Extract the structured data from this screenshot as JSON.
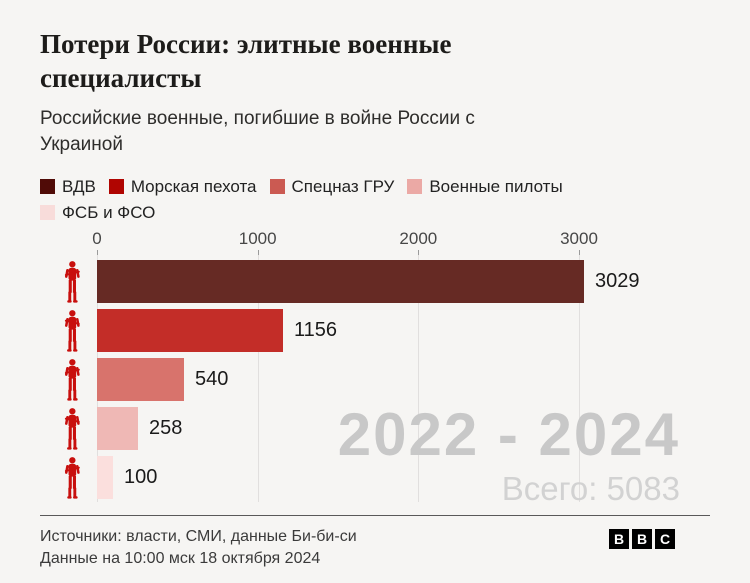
{
  "header": {
    "title_lines": [
      "Потери России: элитные военные",
      "специалисты"
    ],
    "subtitle_lines": [
      "Российские военные, погибшие в войне России с",
      "Украиной"
    ]
  },
  "legend": {
    "items": [
      {
        "label": "ВДВ",
        "swatch_color": "#500b07"
      },
      {
        "label": "Морская пехота",
        "swatch_color": "#b00501"
      },
      {
        "label": "Спецназ ГРУ",
        "swatch_color": "#cb5a52"
      },
      {
        "label": "Военные пилоты",
        "swatch_color": "#eba9a5"
      },
      {
        "label": "ФСБ и ФСО",
        "swatch_color": "#f8dcda"
      }
    ]
  },
  "chart_data": {
    "type": "bar",
    "orientation": "horizontal",
    "title": "Потери России: элитные военные специалисты",
    "subtitle": "Российские военные, погибшие в войне России с Украиной",
    "categories": [
      "ВДВ",
      "Морская пехота",
      "Спецназ ГРУ",
      "Военные пилоты",
      "ФСБ и ФСО"
    ],
    "values": [
      3029,
      1156,
      540,
      258,
      100
    ],
    "bar_colors": [
      "#662a24",
      "#c32d28",
      "#d8736c",
      "#efb8b5",
      "#fbdfdd"
    ],
    "row_icons": [
      "soldier-icon",
      "soldier-icon",
      "soldier-icon",
      "soldier-icon",
      "soldier-icon"
    ],
    "x_ticks": [
      0,
      1000,
      2000,
      3000
    ],
    "xlim": [
      0,
      3000
    ],
    "grid": "vertical-gridlines",
    "legend_position": "top",
    "annotations": {
      "period": "2022 - 2024",
      "total": "Всего: 5083"
    }
  },
  "footer": {
    "sources": "Источники: власти, СМИ, данные Би-би-си",
    "updated": "Данные на 10:00 мск 18 октября 2024",
    "logo_letters": [
      "B",
      "B",
      "C"
    ]
  },
  "colors": {
    "background": "#f6f5f3",
    "icon": "#c80f0d",
    "gridline": "#e1dfde",
    "axis_text": "#474747",
    "value_text": "#1a1a1a",
    "watermark_period": "#c8c8c8",
    "watermark_total": "#d2d2d2",
    "divider": "#595959",
    "title_text": "#1d1c1a",
    "subtitle_text": "#2e2d2b",
    "legend_text": "#222222",
    "footer_text": "#3b3b3b",
    "logo_bg": "#000000",
    "logo_text": "#ffffff"
  }
}
